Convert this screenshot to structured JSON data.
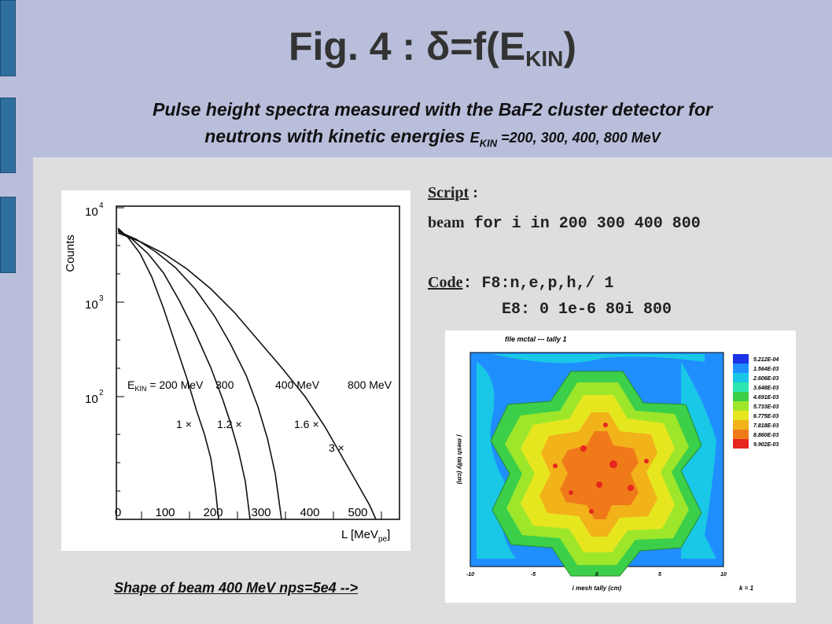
{
  "header": {
    "title_prefix": "Fig. 4 : δ=f(E",
    "title_sub": "KIN",
    "title_suffix": ")",
    "subtitle_line1": "Pulse height spectra measured with the BaF2 cluster detector for",
    "subtitle_line2_text": "neutrons with kinetic energies ",
    "subtitle_e": "E",
    "subtitle_e_sub": "KIN",
    "subtitle_energies": " =200, 300, 400, 800 MeV"
  },
  "spectrum_plot": {
    "y_label": "Counts",
    "y_ticks": [
      "10",
      "10",
      "10"
    ],
    "y_exps": [
      "4",
      "3",
      "2"
    ],
    "x_ticks": [
      "0",
      "100",
      "200",
      "300",
      "400",
      "500"
    ],
    "x_label": "L [MeV",
    "x_label_sub": "pe",
    "x_label_end": "]",
    "series_labels": [
      "E",
      "KIN",
      " = 200 MeV",
      "300",
      "400 MeV",
      "800 MeV"
    ],
    "scale_labels": [
      "1 ×",
      "1.2 ×",
      "1.6 ×",
      "3 ×"
    ]
  },
  "script": {
    "label": "Script",
    "colon": " :",
    "keyword": "beam",
    "command": " for i in 200 300 400 800"
  },
  "code": {
    "label": "Code",
    "line1": ": F8:n,e,p,h,/ 1",
    "line2": "E8: 0 1e-6 80i 800"
  },
  "mesh_plot": {
    "header": "file mctal    --- tally   1",
    "legend": [
      "5.212E-04",
      "1.564E-03",
      "2.606E-03",
      "3.648E-03",
      "4.691E-03",
      "5.733E-03",
      "6.775E-03",
      "7.818E-03",
      "8.860E-03",
      "9.902E-03"
    ],
    "legend_colors": [
      "#1a33e6",
      "#1f8fff",
      "#19c8e6",
      "#2ee6b0",
      "#3ccf4a",
      "#9ee62a",
      "#e6e61f",
      "#f2b21a",
      "#f07a1a",
      "#e6261f"
    ],
    "x_ticks": [
      "-10",
      "-5",
      "0",
      "5",
      "10"
    ],
    "x_label": "i mesh tally (cm)",
    "y_label": "j mesh tally (cm)",
    "k_label": "k =   1"
  },
  "footnote": "Shape of beam 400 MeV  nps=5e4 -->"
}
